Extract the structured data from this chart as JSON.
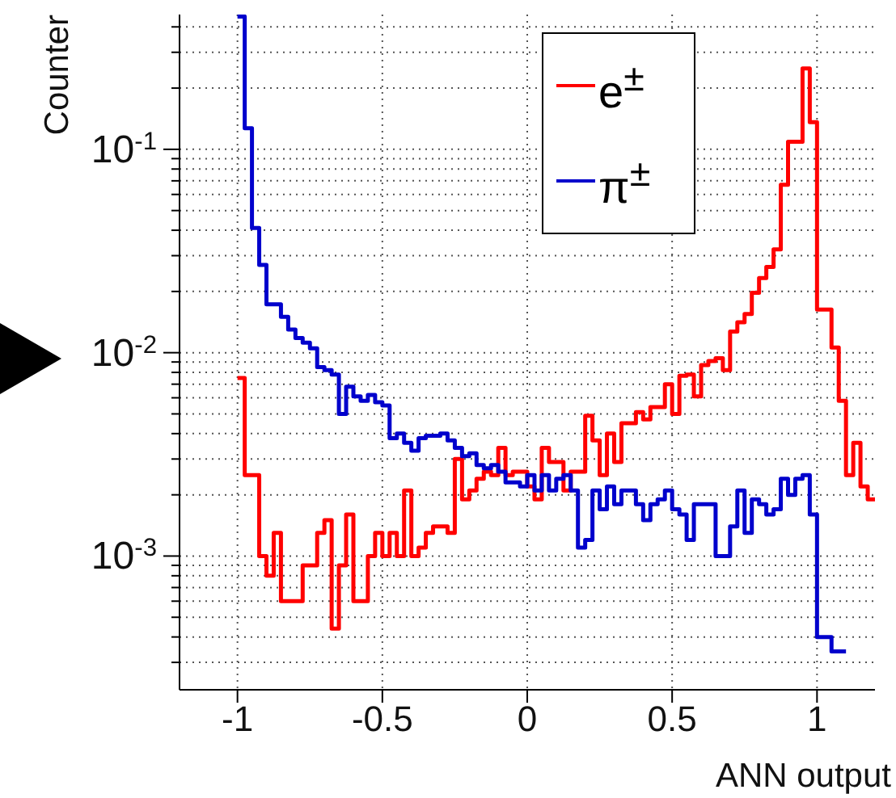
{
  "chart_data": {
    "type": "histogram",
    "xlabel": "ANN output",
    "ylabel": "Counter",
    "bins": [
      -1,
      -0.975,
      -0.95,
      -0.925,
      -0.9,
      -0.875,
      -0.85,
      -0.825,
      -0.8,
      -0.775,
      -0.75,
      -0.725,
      -0.7,
      -0.675,
      -0.65,
      -0.625,
      -0.6,
      -0.575,
      -0.55,
      -0.525,
      -0.5,
      -0.475,
      -0.45,
      -0.425,
      -0.4,
      -0.375,
      -0.35,
      -0.325,
      -0.3,
      -0.275,
      -0.25,
      -0.225,
      -0.2,
      -0.175,
      -0.15,
      -0.125,
      -0.1,
      -0.075,
      -0.05,
      -0.025,
      0,
      0.025,
      0.05,
      0.075,
      0.1,
      0.125,
      0.15,
      0.175,
      0.2,
      0.225,
      0.25,
      0.275,
      0.3,
      0.325,
      0.35,
      0.375,
      0.4,
      0.425,
      0.45,
      0.475,
      0.5,
      0.525,
      0.55,
      0.575,
      0.6,
      0.625,
      0.65,
      0.675,
      0.7,
      0.725,
      0.75,
      0.775,
      0.8,
      0.825,
      0.85,
      0.875,
      0.9,
      0.925,
      0.95,
      0.975,
      1,
      1.025,
      1.05,
      1.075,
      1.1,
      1.125,
      1.15,
      1.175,
      1.2
    ],
    "series": [
      {
        "name": "e$^{±}$",
        "color": "#ff0000",
        "values": [
          0.0075,
          0.0025,
          0.0025,
          0.001,
          0.0008,
          0.0013,
          0.0006,
          0.0006,
          0.0006,
          0.0009,
          0.0009,
          0.0013,
          0.0015,
          0.00044,
          0.0009,
          0.0016,
          0.0006,
          0.0006,
          0.001,
          0.0013,
          0.001,
          0.0013,
          0.001,
          0.0021,
          0.001,
          0.0011,
          0.0013,
          0.0014,
          0.0014,
          0.0013,
          0.003,
          0.0019,
          0.0021,
          0.0024,
          0.0026,
          0.0025,
          0.0034,
          0.0025,
          0.0026,
          0.0026,
          0.0022,
          0.0019,
          0.0034,
          0.0029,
          0.0029,
          0.0021,
          0.0026,
          0.0026,
          0.0049,
          0.0037,
          0.0025,
          0.004,
          0.0029,
          0.0045,
          0.0045,
          0.0051,
          0.0047,
          0.0054,
          0.0054,
          0.007,
          0.005,
          0.0077,
          0.0078,
          0.0061,
          0.0087,
          0.0091,
          0.0094,
          0.0082,
          0.0127,
          0.0141,
          0.0155,
          0.0197,
          0.0233,
          0.0264,
          0.0322,
          0.067,
          0.109,
          0.109,
          0.25,
          0.136,
          0.0163,
          0.0163,
          0.0106,
          0.0058,
          0.0025,
          0.0036,
          0.0022,
          0.0019
        ]
      },
      {
        "name": "π$^{±}$",
        "color": "#0000cc",
        "bins": [
          -1,
          -0.975,
          -0.95,
          -0.925,
          -0.9,
          -0.875,
          -0.85,
          -0.825,
          -0.8,
          -0.775,
          -0.75,
          -0.725,
          -0.7,
          -0.675,
          -0.65,
          -0.625,
          -0.6,
          -0.575,
          -0.55,
          -0.525,
          -0.5,
          -0.475,
          -0.45,
          -0.425,
          -0.4,
          -0.375,
          -0.35,
          -0.325,
          -0.3,
          -0.275,
          -0.25,
          -0.225,
          -0.2,
          -0.175,
          -0.15,
          -0.125,
          -0.1,
          -0.075,
          -0.05,
          -0.025,
          0,
          0.025,
          0.05,
          0.075,
          0.1,
          0.125,
          0.15,
          0.175,
          0.2,
          0.225,
          0.25,
          0.275,
          0.3,
          0.325,
          0.35,
          0.375,
          0.4,
          0.425,
          0.45,
          0.475,
          0.5,
          0.525,
          0.55,
          0.575,
          0.6,
          0.625,
          0.65,
          0.675,
          0.7,
          0.725,
          0.75,
          0.775,
          0.8,
          0.825,
          0.85,
          0.875,
          0.9,
          0.925,
          0.95,
          0.975,
          1,
          1.025,
          1.05,
          1.075,
          1.1
        ],
        "values": [
          0.45,
          0.127,
          0.041,
          0.027,
          0.0173,
          0.0173,
          0.015,
          0.013,
          0.0118,
          0.0112,
          0.0105,
          0.0085,
          0.0082,
          0.0078,
          0.005,
          0.0068,
          0.0061,
          0.0058,
          0.0062,
          0.0057,
          0.0055,
          0.0038,
          0.004,
          0.0036,
          0.0033,
          0.0038,
          0.0039,
          0.0039,
          0.004,
          0.0037,
          0.0034,
          0.0031,
          0.0032,
          0.0028,
          0.0027,
          0.0028,
          0.0026,
          0.0023,
          0.0023,
          0.0022,
          0.0025,
          0.0021,
          0.0025,
          0.0021,
          0.0024,
          0.0025,
          0.0021,
          0.0011,
          0.0012,
          0.0021,
          0.0017,
          0.0022,
          0.0018,
          0.0021,
          0.0021,
          0.0018,
          0.0015,
          0.0018,
          0.0019,
          0.0021,
          0.0017,
          0.0016,
          0.0012,
          0.0018,
          0.0018,
          0.0018,
          0.001,
          0.001,
          0.0014,
          0.0021,
          0.0013,
          0.0019,
          0.0018,
          0.0016,
          0.0017,
          0.0024,
          0.002,
          0.0024,
          0.0025,
          0.0016,
          0.0004,
          0.0004,
          0.00034,
          0.00034
        ]
      }
    ],
    "xlim": [
      -1.2,
      1.2
    ],
    "xticks": [
      -1,
      -0.5,
      0,
      0.5,
      1
    ],
    "ylim": [
      0.00022,
      0.46
    ],
    "log": "y",
    "yticks": [
      {
        "value": 0.0003,
        "label": null
      },
      {
        "value": 0.0004,
        "label": null
      },
      {
        "value": 0.0005,
        "label": null
      },
      {
        "value": 0.0006,
        "label": null
      },
      {
        "value": 0.0007,
        "label": null
      },
      {
        "value": 0.0008,
        "label": null
      },
      {
        "value": 0.0009,
        "label": null
      },
      {
        "value": 0.001,
        "label": "10$^{-3}$"
      },
      {
        "value": 0.002,
        "label": null
      },
      {
        "value": 0.003,
        "label": null
      },
      {
        "value": 0.004,
        "label": null
      },
      {
        "value": 0.005,
        "label": null
      },
      {
        "value": 0.006,
        "label": null
      },
      {
        "value": 0.007,
        "label": null
      },
      {
        "value": 0.008,
        "label": null
      },
      {
        "value": 0.009,
        "label": null
      },
      {
        "value": 0.01,
        "label": "10$^{-2}$"
      },
      {
        "value": 0.02,
        "label": null
      },
      {
        "value": 0.03,
        "label": null
      },
      {
        "value": 0.04,
        "label": null
      },
      {
        "value": 0.05,
        "label": null
      },
      {
        "value": 0.06,
        "label": null
      },
      {
        "value": 0.07,
        "label": null
      },
      {
        "value": 0.08,
        "label": null
      },
      {
        "value": 0.09,
        "label": null
      },
      {
        "value": 0.1,
        "label": "10$^{-1}$"
      },
      {
        "value": 0.2,
        "label": null
      },
      {
        "value": 0.3,
        "label": null
      },
      {
        "value": 0.4,
        "label": null
      }
    ],
    "grid": true,
    "legend": "top right"
  }
}
